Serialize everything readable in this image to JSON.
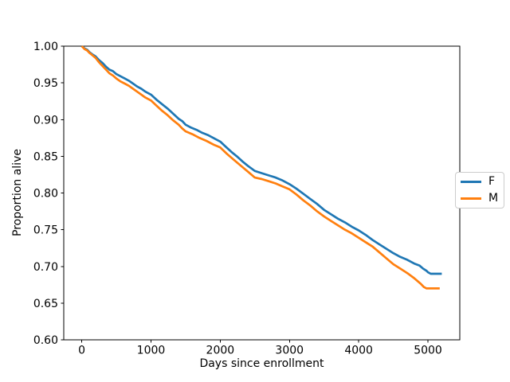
{
  "figure": {
    "background": "#ffffff"
  },
  "chart_data": {
    "type": "line",
    "title": "",
    "xlabel": "Days since enrollment",
    "ylabel": "Proportion alive",
    "xlim": [
      -260,
      5460
    ],
    "ylim": [
      0.6,
      1.0
    ],
    "x_tick_values": [
      0,
      1000,
      2000,
      3000,
      4000,
      5000
    ],
    "x_tick_labels": [
      "0",
      "1000",
      "2000",
      "3000",
      "4000",
      "5000"
    ],
    "y_tick_values": [
      0.6,
      0.65,
      0.7,
      0.75,
      0.8,
      0.85,
      0.9,
      0.95,
      1.0
    ],
    "y_tick_labels": [
      "0.60",
      "0.65",
      "0.70",
      "0.75",
      "0.80",
      "0.85",
      "0.90",
      "0.95",
      "1.00"
    ],
    "grid": false,
    "axis_color": "#000000",
    "legend": {
      "position": "center-right-outside",
      "border_color": "#cccccc",
      "entries": [
        {
          "label": "F",
          "color": "#1f77b4"
        },
        {
          "label": "M",
          "color": "#ff7f0e"
        }
      ]
    },
    "series": [
      {
        "name": "F",
        "color": "#1f77b4",
        "points": [
          [
            0,
            1.0
          ],
          [
            40,
            0.997
          ],
          [
            80,
            0.995
          ],
          [
            110,
            0.992
          ],
          [
            150,
            0.989
          ],
          [
            200,
            0.986
          ],
          [
            250,
            0.981
          ],
          [
            300,
            0.977
          ],
          [
            350,
            0.972
          ],
          [
            400,
            0.968
          ],
          [
            450,
            0.966
          ],
          [
            500,
            0.962
          ],
          [
            560,
            0.959
          ],
          [
            620,
            0.956
          ],
          [
            680,
            0.953
          ],
          [
            740,
            0.949
          ],
          [
            800,
            0.945
          ],
          [
            860,
            0.942
          ],
          [
            920,
            0.938
          ],
          [
            1000,
            0.934
          ],
          [
            1080,
            0.927
          ],
          [
            1160,
            0.921
          ],
          [
            1240,
            0.915
          ],
          [
            1320,
            0.908
          ],
          [
            1400,
            0.901
          ],
          [
            1450,
            0.898
          ],
          [
            1500,
            0.893
          ],
          [
            1580,
            0.889
          ],
          [
            1660,
            0.886
          ],
          [
            1740,
            0.882
          ],
          [
            1820,
            0.879
          ],
          [
            1900,
            0.875
          ],
          [
            2000,
            0.87
          ],
          [
            2080,
            0.863
          ],
          [
            2160,
            0.856
          ],
          [
            2240,
            0.85
          ],
          [
            2320,
            0.843
          ],
          [
            2400,
            0.837
          ],
          [
            2500,
            0.83
          ],
          [
            2600,
            0.827
          ],
          [
            2700,
            0.824
          ],
          [
            2800,
            0.821
          ],
          [
            2900,
            0.817
          ],
          [
            3000,
            0.812
          ],
          [
            3100,
            0.806
          ],
          [
            3200,
            0.799
          ],
          [
            3300,
            0.792
          ],
          [
            3400,
            0.785
          ],
          [
            3500,
            0.777
          ],
          [
            3600,
            0.771
          ],
          [
            3700,
            0.765
          ],
          [
            3800,
            0.76
          ],
          [
            3900,
            0.754
          ],
          [
            4000,
            0.749
          ],
          [
            4100,
            0.743
          ],
          [
            4200,
            0.736
          ],
          [
            4300,
            0.73
          ],
          [
            4400,
            0.724
          ],
          [
            4500,
            0.718
          ],
          [
            4600,
            0.713
          ],
          [
            4700,
            0.709
          ],
          [
            4800,
            0.704
          ],
          [
            4880,
            0.701
          ],
          [
            4930,
            0.697
          ],
          [
            4980,
            0.694
          ],
          [
            5000,
            0.692
          ],
          [
            5040,
            0.69
          ],
          [
            5200,
            0.69
          ]
        ]
      },
      {
        "name": "M",
        "color": "#ff7f0e",
        "points": [
          [
            0,
            1.0
          ],
          [
            40,
            0.996
          ],
          [
            80,
            0.994
          ],
          [
            110,
            0.991
          ],
          [
            150,
            0.988
          ],
          [
            200,
            0.984
          ],
          [
            250,
            0.978
          ],
          [
            300,
            0.973
          ],
          [
            350,
            0.968
          ],
          [
            400,
            0.963
          ],
          [
            450,
            0.96
          ],
          [
            500,
            0.956
          ],
          [
            560,
            0.952
          ],
          [
            620,
            0.949
          ],
          [
            680,
            0.946
          ],
          [
            740,
            0.942
          ],
          [
            800,
            0.938
          ],
          [
            860,
            0.934
          ],
          [
            920,
            0.93
          ],
          [
            1000,
            0.926
          ],
          [
            1080,
            0.919
          ],
          [
            1160,
            0.912
          ],
          [
            1240,
            0.906
          ],
          [
            1320,
            0.899
          ],
          [
            1400,
            0.893
          ],
          [
            1450,
            0.888
          ],
          [
            1500,
            0.884
          ],
          [
            1600,
            0.88
          ],
          [
            1700,
            0.875
          ],
          [
            1800,
            0.871
          ],
          [
            1900,
            0.866
          ],
          [
            2000,
            0.862
          ],
          [
            2100,
            0.853
          ],
          [
            2200,
            0.845
          ],
          [
            2300,
            0.837
          ],
          [
            2400,
            0.829
          ],
          [
            2500,
            0.821
          ],
          [
            2600,
            0.819
          ],
          [
            2700,
            0.816
          ],
          [
            2800,
            0.813
          ],
          [
            2900,
            0.809
          ],
          [
            3000,
            0.805
          ],
          [
            3100,
            0.798
          ],
          [
            3200,
            0.79
          ],
          [
            3300,
            0.783
          ],
          [
            3400,
            0.775
          ],
          [
            3500,
            0.768
          ],
          [
            3600,
            0.762
          ],
          [
            3700,
            0.756
          ],
          [
            3800,
            0.75
          ],
          [
            3900,
            0.745
          ],
          [
            4000,
            0.739
          ],
          [
            4100,
            0.733
          ],
          [
            4200,
            0.727
          ],
          [
            4300,
            0.719
          ],
          [
            4400,
            0.711
          ],
          [
            4500,
            0.703
          ],
          [
            4600,
            0.697
          ],
          [
            4700,
            0.691
          ],
          [
            4800,
            0.684
          ],
          [
            4850,
            0.68
          ],
          [
            4900,
            0.676
          ],
          [
            4940,
            0.672
          ],
          [
            4980,
            0.67
          ],
          [
            5170,
            0.67
          ]
        ]
      }
    ]
  }
}
